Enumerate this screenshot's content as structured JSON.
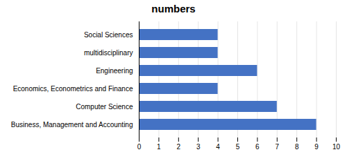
{
  "chart_data": {
    "type": "bar",
    "title": "numbers",
    "orientation": "horizontal",
    "categories": [
      "Business, Management and Accounting",
      "Computer Science",
      "Economics, Econometrics and Finance",
      "Engineering",
      "multidisciplinary",
      "Social Sciences"
    ],
    "values": [
      9,
      7,
      4,
      6,
      4,
      4
    ],
    "color": "#4472C4",
    "xlim": [
      0,
      10
    ],
    "xticks": [
      0,
      1,
      2,
      3,
      4,
      5,
      6,
      7,
      8,
      9,
      10
    ],
    "grid": true
  }
}
